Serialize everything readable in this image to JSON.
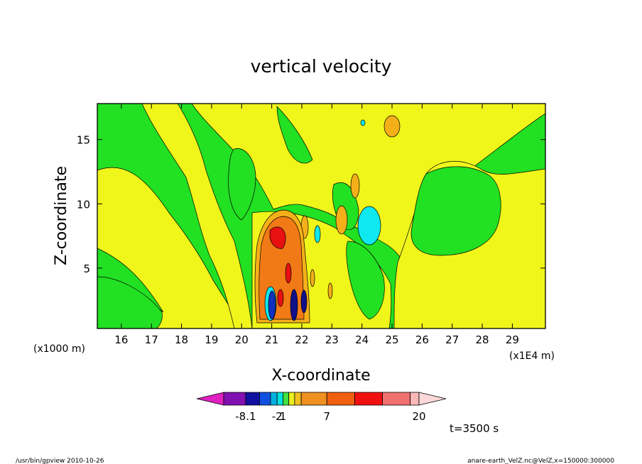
{
  "chart_data": {
    "type": "heatmap",
    "title": "vertical velocity",
    "xlabel": "X-coordinate",
    "ylabel": "Z-coordinate",
    "x_unit_left": "(x1000 m)",
    "x_unit_right": "(x1E4 m)",
    "xlim": [
      15.2,
      30.1
    ],
    "ylim": [
      0.3,
      17.8
    ],
    "x_ticks": [
      {
        "v": 16,
        "label": "16"
      },
      {
        "v": 17,
        "label": "17"
      },
      {
        "v": 18,
        "label": "18"
      },
      {
        "v": 19,
        "label": "19"
      },
      {
        "v": 20,
        "label": "20"
      },
      {
        "v": 21,
        "label": "21"
      },
      {
        "v": 22,
        "label": "22"
      },
      {
        "v": 23,
        "label": "23"
      },
      {
        "v": 24,
        "label": "24"
      },
      {
        "v": 25,
        "label": "25"
      },
      {
        "v": 26,
        "label": "26"
      },
      {
        "v": 27,
        "label": "27"
      },
      {
        "v": 28,
        "label": "28"
      },
      {
        "v": 29,
        "label": "29"
      }
    ],
    "y_ticks": [
      {
        "v": 5,
        "label": "5"
      },
      {
        "v": 10,
        "label": "10"
      },
      {
        "v": 15,
        "label": "15"
      }
    ],
    "colorbar": {
      "colors": [
        "#e020c0",
        "#8010b0",
        "#1010a0",
        "#1050e0",
        "#00b0e0",
        "#00e0e0",
        "#40e040",
        "#e8f020",
        "#f0c020",
        "#f09020",
        "#f06010",
        "#f01010",
        "#f07070",
        "#f8b8b8",
        "#fcd8d8"
      ],
      "labels": [
        {
          "boundary": 1,
          "text": "-8.1"
        },
        {
          "boundary": 4,
          "text": "-2"
        },
        {
          "boundary": 5,
          "text": "1"
        },
        {
          "boundary": 9,
          "text": "7"
        },
        {
          "boundary": 13,
          "text": "20"
        }
      ]
    },
    "field_colors": {
      "green": "#22e022",
      "yellow": "#f0f51a",
      "orange": "#f27a16",
      "light_orange": "#f5b019",
      "red": "#e81010",
      "cyan": "#10e8f0",
      "blue": "#1030c0",
      "navy": "#10108a"
    }
  },
  "time_label": "t=3500 s",
  "footer": {
    "left": "/usr/bin/gpview   2010-10-26",
    "right": "anare-earth_VelZ.nc@VelZ,x=150000:300000"
  }
}
